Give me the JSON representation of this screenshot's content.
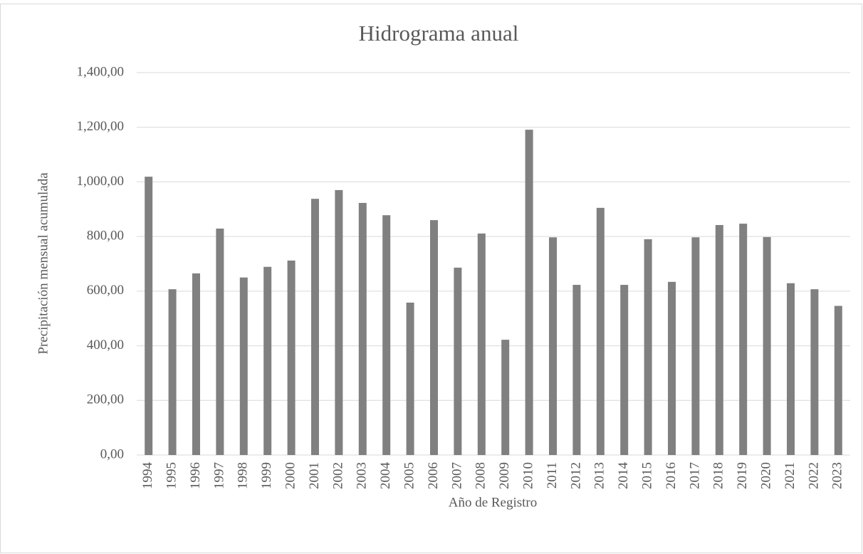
{
  "chart_data": {
    "type": "bar",
    "title": "Hidrograma anual",
    "x_label": "Año de Registro",
    "y_label": "Precipitación mensual acumulada",
    "categories": [
      "1994",
      "1995",
      "1996",
      "1997",
      "1998",
      "1999",
      "2000",
      "2001",
      "2002",
      "2003",
      "2004",
      "2005",
      "2006",
      "2007",
      "2008",
      "2009",
      "2010",
      "2011",
      "2012",
      "2013",
      "2014",
      "2015",
      "2016",
      "2017",
      "2018",
      "2019",
      "2020",
      "2021",
      "2022",
      "2023"
    ],
    "values": [
      1019,
      607,
      665,
      829,
      650,
      689,
      712,
      938,
      970,
      923,
      878,
      558,
      860,
      686,
      811,
      422,
      1191,
      797,
      623,
      905,
      623,
      790,
      634,
      797,
      842,
      847,
      798,
      629,
      607,
      546
    ],
    "color": "#808080",
    "ylim": [
      0,
      1400
    ],
    "yticks": [
      {
        "value": 0,
        "label": "0,00"
      },
      {
        "value": 200,
        "label": "200,00"
      },
      {
        "value": 400,
        "label": "400,00"
      },
      {
        "value": 600,
        "label": "600,00"
      },
      {
        "value": 800,
        "label": "800,00"
      },
      {
        "value": 1000,
        "label": "1,000,00"
      },
      {
        "value": 1200,
        "label": "1,200,00"
      },
      {
        "value": 1400,
        "label": "1,400,00"
      }
    ],
    "grid": true
  }
}
